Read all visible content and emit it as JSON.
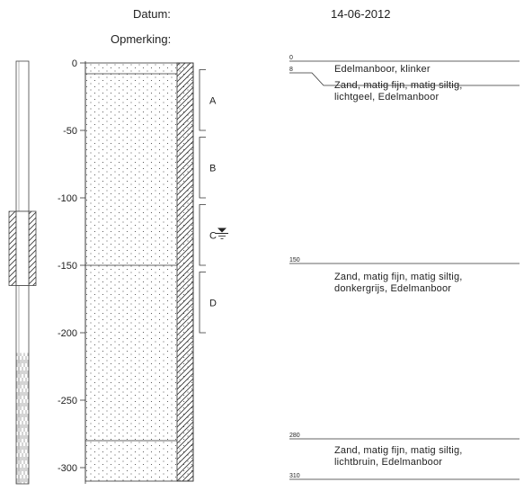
{
  "header": {
    "datum_label": "Datum:",
    "datum_value": "14-06-2012",
    "remark_label": "Opmerking:"
  },
  "depth_axis": {
    "range_cm": [
      0,
      310
    ],
    "ticks": [
      0,
      -50,
      -100,
      -150,
      -200,
      -250,
      -300
    ]
  },
  "well": {
    "screen_top_cm": 110,
    "screen_bottom_cm": 165,
    "sump_top_cm": 215
  },
  "groundwater_level_cm": 125,
  "samples": [
    {
      "label": "A",
      "top": 5,
      "bottom": 50
    },
    {
      "label": "B",
      "top": 55,
      "bottom": 100
    },
    {
      "label": "C",
      "top": 105,
      "bottom": 150
    },
    {
      "label": "D",
      "top": 155,
      "bottom": 200
    }
  ],
  "layers": [
    {
      "top": 0,
      "bottom": 8,
      "top_label": "0",
      "bottom_label": "8",
      "description": [
        "Edelmanboor, klinker"
      ]
    },
    {
      "top": 8,
      "bottom": 150,
      "top_label": "",
      "bottom_label": "150",
      "description": [
        "Zand, matig fijn, matig siltig,",
        "lichtgeel, Edelmanboor"
      ]
    },
    {
      "top": 150,
      "bottom": 280,
      "top_label": "",
      "bottom_label": "280",
      "description": [
        "Zand, matig fijn, matig siltig,",
        "donkergrijs, Edelmanboor"
      ]
    },
    {
      "top": 280,
      "bottom": 310,
      "top_label": "",
      "bottom_label": "310",
      "description": [
        "Zand, matig fijn, matig siltig,",
        "lichtbruin, Edelmanboor"
      ]
    }
  ]
}
